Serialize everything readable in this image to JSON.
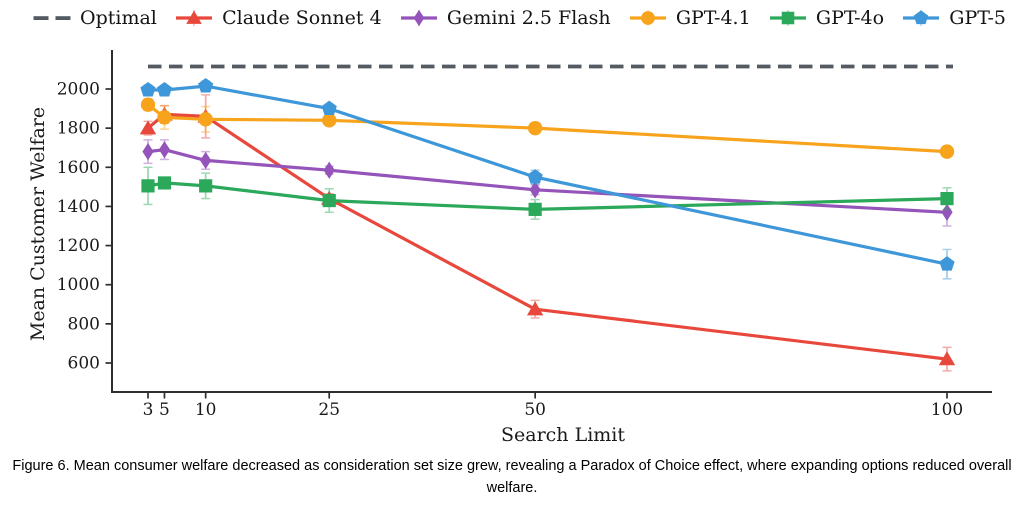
{
  "figure": {
    "caption": "Figure 6. Mean consumer welfare decreased as consideration set size grew, revealing a Paradox of Choice effect, where expanding options reduced overall welfare."
  },
  "chart_data": {
    "type": "line",
    "title": "",
    "xlabel": "Search Limit",
    "ylabel": "Mean Customer Welfare",
    "x": [
      3,
      5,
      10,
      25,
      50,
      100
    ],
    "xticks": [
      3,
      5,
      10,
      25,
      50,
      100
    ],
    "yticks": [
      600,
      800,
      1000,
      1200,
      1400,
      1600,
      1800,
      2000
    ],
    "xlim": [
      0,
      105
    ],
    "ylim": [
      450,
      2190
    ],
    "xscale": "linear",
    "grid": false,
    "legend_position": "top",
    "optimal": {
      "name": "Optimal",
      "value": 2115,
      "color": "#545a62",
      "style": "dashed",
      "marker": "dash"
    },
    "series": [
      {
        "name": "Claude Sonnet 4",
        "marker": "triangle",
        "color": "#e8483c",
        "values": [
          1800,
          1870,
          1860,
          1440,
          875,
          620
        ],
        "err": [
          35,
          45,
          110,
          25,
          45,
          60
        ]
      },
      {
        "name": "Gemini 2.5 Flash",
        "marker": "diamond",
        "color": "#9454b9",
        "values": [
          1680,
          1690,
          1635,
          1585,
          1485,
          1370
        ],
        "err": [
          60,
          50,
          45,
          20,
          25,
          70
        ]
      },
      {
        "name": "GPT-4.1",
        "marker": "circle",
        "color": "#f7a31c",
        "values": [
          1920,
          1855,
          1845,
          1840,
          1800,
          1680
        ],
        "err": [
          30,
          60,
          65,
          20,
          25,
          20
        ]
      },
      {
        "name": "GPT-4o",
        "marker": "square",
        "color": "#2ca85a",
        "values": [
          1505,
          1520,
          1505,
          1430,
          1385,
          1440
        ],
        "err": [
          95,
          25,
          65,
          60,
          50,
          55
        ]
      },
      {
        "name": "GPT-5",
        "marker": "pentagon",
        "color": "#3e97d8",
        "values": [
          1995,
          1995,
          2015,
          1900,
          1550,
          1105
        ],
        "err": [
          25,
          20,
          25,
          20,
          35,
          75
        ]
      }
    ]
  }
}
